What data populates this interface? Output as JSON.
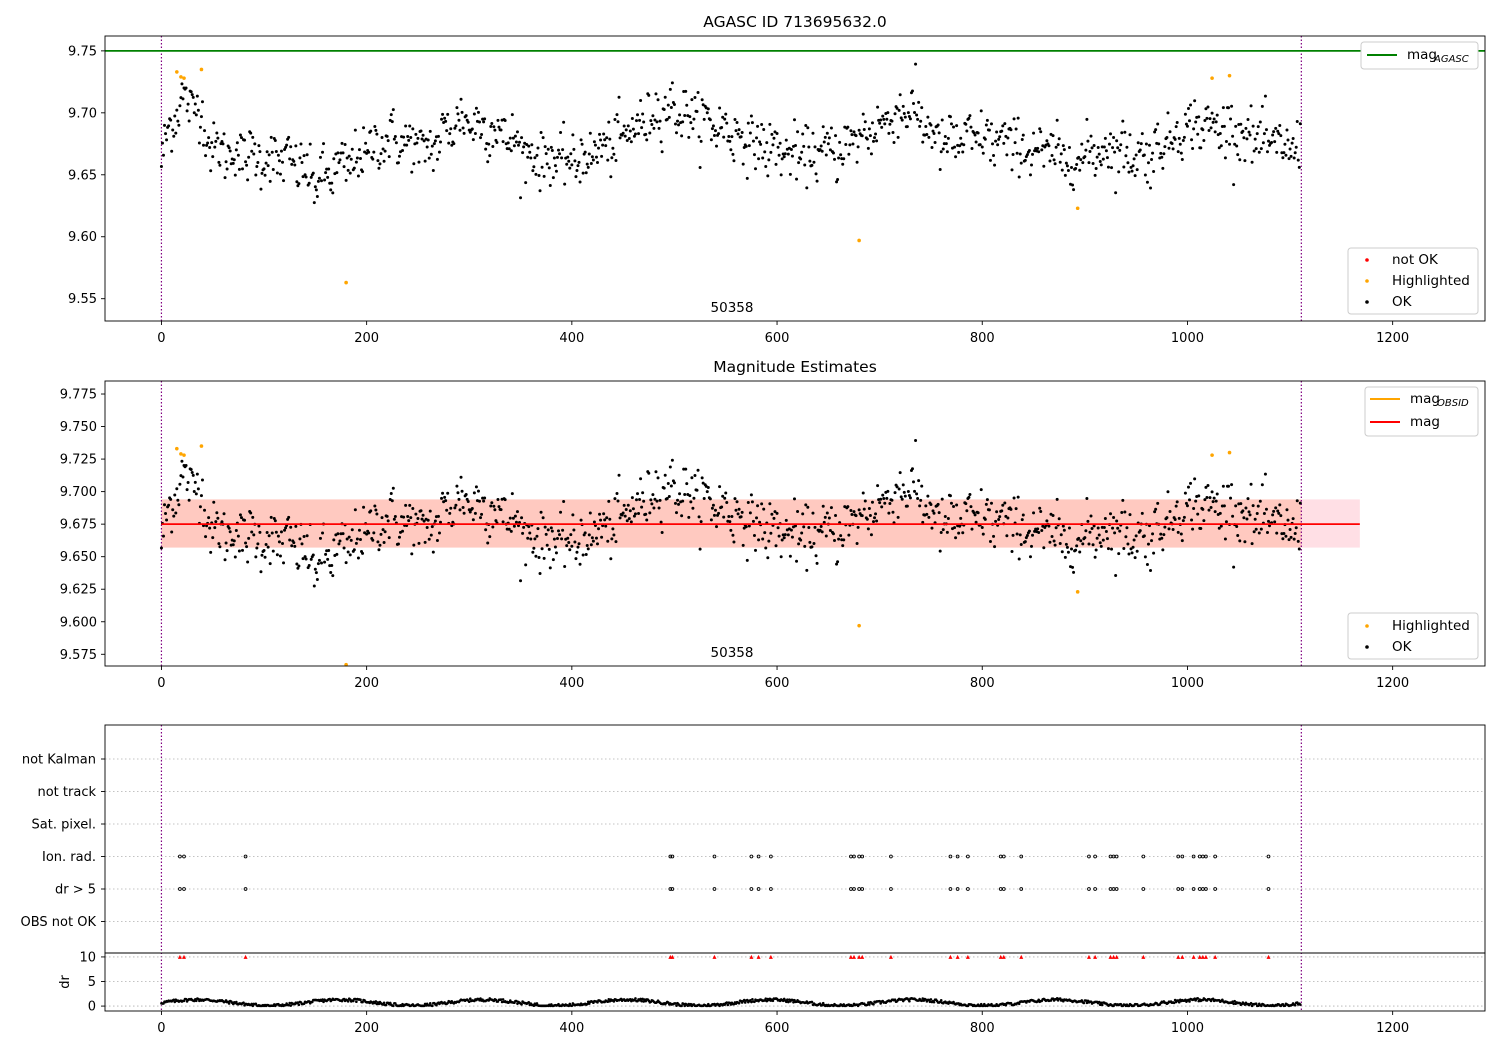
{
  "chart_data": [
    {
      "type": "scatter",
      "title": "AGASC ID 713695632.0",
      "annotation": "50358",
      "xlim": [
        -55,
        1290
      ],
      "ylim": [
        9.532,
        9.762
      ],
      "xticks": [
        0,
        200,
        400,
        600,
        800,
        1000,
        1200
      ],
      "yticks": [
        9.55,
        9.6,
        9.65,
        9.7,
        9.75
      ],
      "ytick_labels": [
        "9.55",
        "9.60",
        "9.65",
        "9.70",
        "9.75"
      ],
      "vlines": [
        0,
        1111
      ],
      "hline": {
        "y": 9.75,
        "color": "#008000"
      },
      "legend_top": [
        {
          "label": "mag",
          "sub": "AGASC",
          "color": "#008000",
          "kind": "line"
        }
      ],
      "legend_bottom": [
        {
          "label": "not OK",
          "color": "#ff0000",
          "kind": "dot"
        },
        {
          "label": "Highlighted",
          "color": "#ffa500",
          "kind": "dot"
        },
        {
          "label": "OK",
          "color": "#000000",
          "kind": "dot"
        }
      ],
      "highlighted": [
        [
          15,
          9.733
        ],
        [
          19,
          9.729
        ],
        [
          22,
          9.728
        ],
        [
          39,
          9.735
        ],
        [
          180,
          9.563
        ],
        [
          680,
          9.597
        ],
        [
          893,
          9.623
        ],
        [
          1024,
          9.728
        ],
        [
          1041,
          9.73
        ]
      ],
      "ok_trend": [
        [
          0,
          9.66
        ],
        [
          8,
          9.69
        ],
        [
          20,
          9.71
        ],
        [
          35,
          9.705
        ],
        [
          50,
          9.67
        ],
        [
          90,
          9.665
        ],
        [
          130,
          9.66
        ],
        [
          150,
          9.645
        ],
        [
          185,
          9.66
        ],
        [
          220,
          9.68
        ],
        [
          260,
          9.67
        ],
        [
          290,
          9.695
        ],
        [
          330,
          9.685
        ],
        [
          360,
          9.665
        ],
        [
          400,
          9.66
        ],
        [
          440,
          9.675
        ],
        [
          490,
          9.705
        ],
        [
          540,
          9.69
        ],
        [
          580,
          9.675
        ],
        [
          620,
          9.665
        ],
        [
          660,
          9.67
        ],
        [
          700,
          9.69
        ],
        [
          730,
          9.705
        ],
        [
          760,
          9.675
        ],
        [
          800,
          9.68
        ],
        [
          850,
          9.67
        ],
        [
          890,
          9.662
        ],
        [
          920,
          9.672
        ],
        [
          960,
          9.665
        ],
        [
          1000,
          9.69
        ],
        [
          1040,
          9.688
        ],
        [
          1080,
          9.675
        ],
        [
          1111,
          9.67
        ]
      ],
      "ok_spread": 0.012,
      "ok_count": 1111
    },
    {
      "type": "scatter",
      "title": "Magnitude Estimates",
      "annotation": "50358",
      "xlim": [
        -55,
        1290
      ],
      "ylim": [
        9.566,
        9.785
      ],
      "xticks": [
        0,
        200,
        400,
        600,
        800,
        1000,
        1200
      ],
      "yticks": [
        9.575,
        9.6,
        9.625,
        9.65,
        9.675,
        9.7,
        9.725,
        9.75,
        9.775
      ],
      "ytick_labels": [
        "9.575",
        "9.600",
        "9.625",
        "9.650",
        "9.675",
        "9.700",
        "9.725",
        "9.750",
        "9.775"
      ],
      "vlines": [
        0,
        1111
      ],
      "mag_line": {
        "y": 9.675,
        "x": [
          0,
          1168
        ],
        "color": "#ff0000"
      },
      "band_outer": {
        "y": [
          9.657,
          9.694
        ],
        "x": [
          0,
          1168
        ],
        "color": "#ffc0cb"
      },
      "band_inner": {
        "y": [
          9.657,
          9.694
        ],
        "x": [
          0,
          1111
        ],
        "color": "#ffa07a"
      },
      "legend_top": [
        {
          "label": "mag",
          "sub": "OBSID",
          "color": "#ffa500",
          "kind": "line"
        },
        {
          "label": "mag",
          "sub": "",
          "color": "#ff0000",
          "kind": "line"
        }
      ],
      "legend_bottom": [
        {
          "label": "Highlighted",
          "color": "#ffa500",
          "kind": "dot"
        },
        {
          "label": "OK",
          "color": "#000000",
          "kind": "dot"
        }
      ],
      "highlighted": [
        [
          15,
          9.733
        ],
        [
          19,
          9.729
        ],
        [
          22,
          9.728
        ],
        [
          39,
          9.735
        ],
        [
          180,
          9.567
        ],
        [
          680,
          9.597
        ],
        [
          893,
          9.623
        ],
        [
          1024,
          9.728
        ],
        [
          1041,
          9.73
        ]
      ]
    },
    {
      "type": "scatter",
      "title": "",
      "xlim": [
        -55,
        1290
      ],
      "xticks": [
        0,
        200,
        400,
        600,
        800,
        1000,
        1200
      ],
      "vlines": [
        0,
        1111
      ],
      "flag_labels": [
        "not Kalman",
        "not track",
        "Sat. pixel.",
        "Ion. rad.",
        "dr > 5",
        "OBS not OK"
      ],
      "flag_events": {
        "Ion. rad.": [
          18,
          22,
          82,
          496,
          498,
          539,
          575,
          582,
          594,
          672,
          675,
          680,
          683,
          711,
          769,
          776,
          786,
          818,
          821,
          838,
          904,
          910,
          925,
          928,
          931,
          957,
          991,
          995,
          1006,
          1012,
          1015,
          1018,
          1027,
          1079
        ],
        "dr > 5": [
          18,
          22,
          82,
          496,
          498,
          539,
          575,
          582,
          594,
          672,
          675,
          680,
          683,
          711,
          769,
          776,
          786,
          818,
          821,
          838,
          904,
          910,
          925,
          928,
          931,
          957,
          991,
          995,
          1006,
          1012,
          1015,
          1018,
          1027,
          1079
        ]
      },
      "dr_ylabel": "dr",
      "dr_yticks": [
        0,
        5,
        10
      ],
      "dr_ylim": [
        -1,
        10.8
      ],
      "dr_high_value": 10,
      "dr_high_color": "#ff0000"
    }
  ]
}
